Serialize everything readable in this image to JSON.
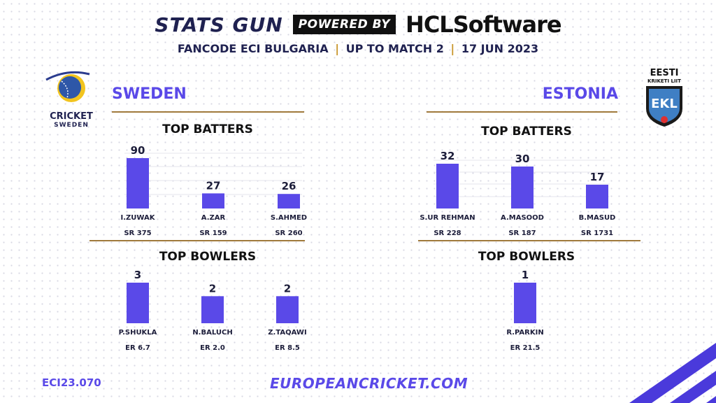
{
  "header": {
    "title": "STATS GUN",
    "powered_by": "POWERED BY",
    "sponsor": "HCLSoftware",
    "subtitle_parts": [
      "FANCODE ECI BULGARIA",
      "UP TO MATCH 2",
      "17 JUN 2023"
    ],
    "separator": "|"
  },
  "logos": {
    "left_text_line1": "CRICKET",
    "left_text_line2": "SWEDEN",
    "right_text_line1": "EESTI",
    "right_text_line2": "KRIKETI LIIT",
    "right_badge": "EKL"
  },
  "sections": {
    "batters_title": "TOP BATTERS",
    "bowlers_title": "TOP BOWLERS"
  },
  "footer": {
    "code": "ECI23.070",
    "url": "EUROPEANCRICKET.COM"
  },
  "colors": {
    "bar": "#5a49e8",
    "accent": "#5a49e8",
    "rule": "#a07a3c",
    "navy": "#1f2150"
  },
  "chart_data": [
    {
      "type": "bar",
      "team": "SWEDEN",
      "title": "TOP BATTERS",
      "categories": [
        "I.ZUWAK",
        "A.ZAR",
        "S.AHMED"
      ],
      "values": [
        90,
        27,
        26
      ],
      "sublabels": [
        "SR 375",
        "SR 159",
        "SR 260"
      ]
    },
    {
      "type": "bar",
      "team": "ESTONIA",
      "title": "TOP BATTERS",
      "categories": [
        "S.UR REHMAN",
        "A.MASOOD",
        "B.MASUD"
      ],
      "values": [
        32,
        30,
        17
      ],
      "sublabels": [
        "SR 228",
        "SR 187",
        "SR 1731"
      ]
    },
    {
      "type": "bar",
      "team": "SWEDEN",
      "title": "TOP BOWLERS",
      "categories": [
        "P.SHUKLA",
        "N.BALUCH",
        "Z.TAQAWI"
      ],
      "values": [
        3,
        2,
        2
      ],
      "sublabels": [
        "ER 6.7",
        "ER 2.0",
        "ER 8.5"
      ]
    },
    {
      "type": "bar",
      "team": "ESTONIA",
      "title": "TOP BOWLERS",
      "categories": [
        "R.PARKIN"
      ],
      "values": [
        1
      ],
      "sublabels": [
        "ER 21.5"
      ]
    }
  ]
}
